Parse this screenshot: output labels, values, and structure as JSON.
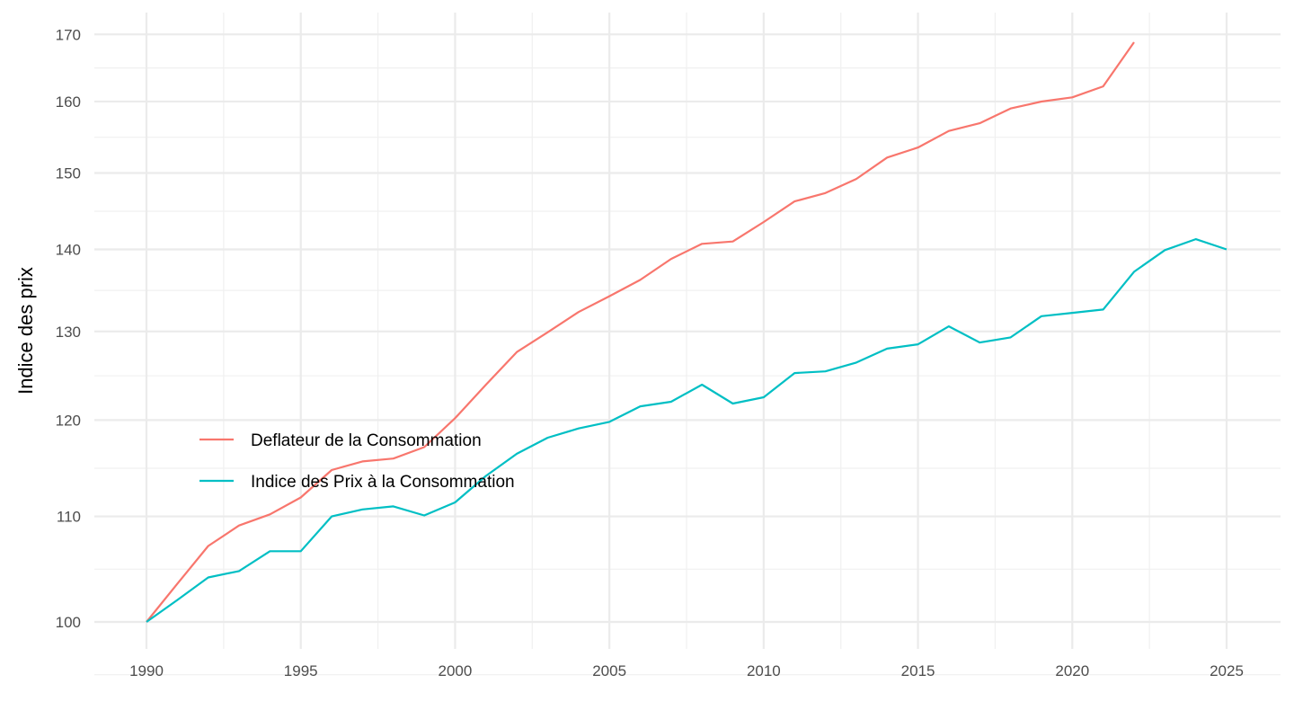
{
  "chart_data": {
    "type": "line",
    "title": "",
    "xlabel": "",
    "ylabel": "Indice des prix",
    "y_scale": "log",
    "ylim": [
      97,
      172
    ],
    "xlim": [
      1986.7,
      2026.8
    ],
    "x_ticks": [
      1990,
      1995,
      2000,
      2005,
      2010,
      2015,
      2020,
      2025
    ],
    "y_ticks": [
      100,
      110,
      120,
      130,
      140,
      150,
      160,
      170
    ],
    "grid": true,
    "legend_position": "inside-left",
    "series": [
      {
        "name": "Deflateur de la Consommation",
        "color": "#F8766D",
        "x": [
          1990,
          1991,
          1992,
          1993,
          1994,
          1995,
          1996,
          1997,
          1998,
          1999,
          2000,
          2001,
          2002,
          2003,
          2004,
          2005,
          2006,
          2007,
          2008,
          2009,
          2010,
          2011,
          2012,
          2013,
          2014,
          2015,
          2016,
          2017,
          2018,
          2019,
          2020,
          2021,
          2022
        ],
        "values": [
          100,
          103.5,
          107.1,
          109.1,
          110.2,
          111.9,
          114.7,
          115.6,
          115.9,
          117.1,
          120.2,
          123.9,
          127.6,
          129.9,
          132.3,
          134.2,
          136.2,
          138.8,
          140.7,
          141.0,
          143.5,
          146.2,
          147.3,
          149.2,
          152.1,
          153.5,
          155.8,
          156.9,
          159.0,
          160.0,
          160.6,
          162.2,
          168.8
        ]
      },
      {
        "name": "Indice des Prix à la Consommation",
        "color": "#00BFC4",
        "x": [
          1990,
          1991,
          1992,
          1993,
          1994,
          1995,
          1996,
          1997,
          1998,
          1999,
          2000,
          2001,
          2002,
          2003,
          2004,
          2005,
          2006,
          2007,
          2008,
          2009,
          2010,
          2011,
          2012,
          2013,
          2014,
          2015,
          2016,
          2017,
          2018,
          2019,
          2020,
          2021,
          2022,
          2023,
          2024,
          2025
        ],
        "values": [
          100,
          102.0,
          104.1,
          104.7,
          106.6,
          106.6,
          110.0,
          110.7,
          111.0,
          110.1,
          111.4,
          114.1,
          116.4,
          118.1,
          119.1,
          119.8,
          121.5,
          122.0,
          123.9,
          121.8,
          122.5,
          125.2,
          125.4,
          126.4,
          128.0,
          128.5,
          130.6,
          128.7,
          129.3,
          131.8,
          132.2,
          132.6,
          137.2,
          139.9,
          141.3,
          140.0
        ]
      }
    ]
  }
}
